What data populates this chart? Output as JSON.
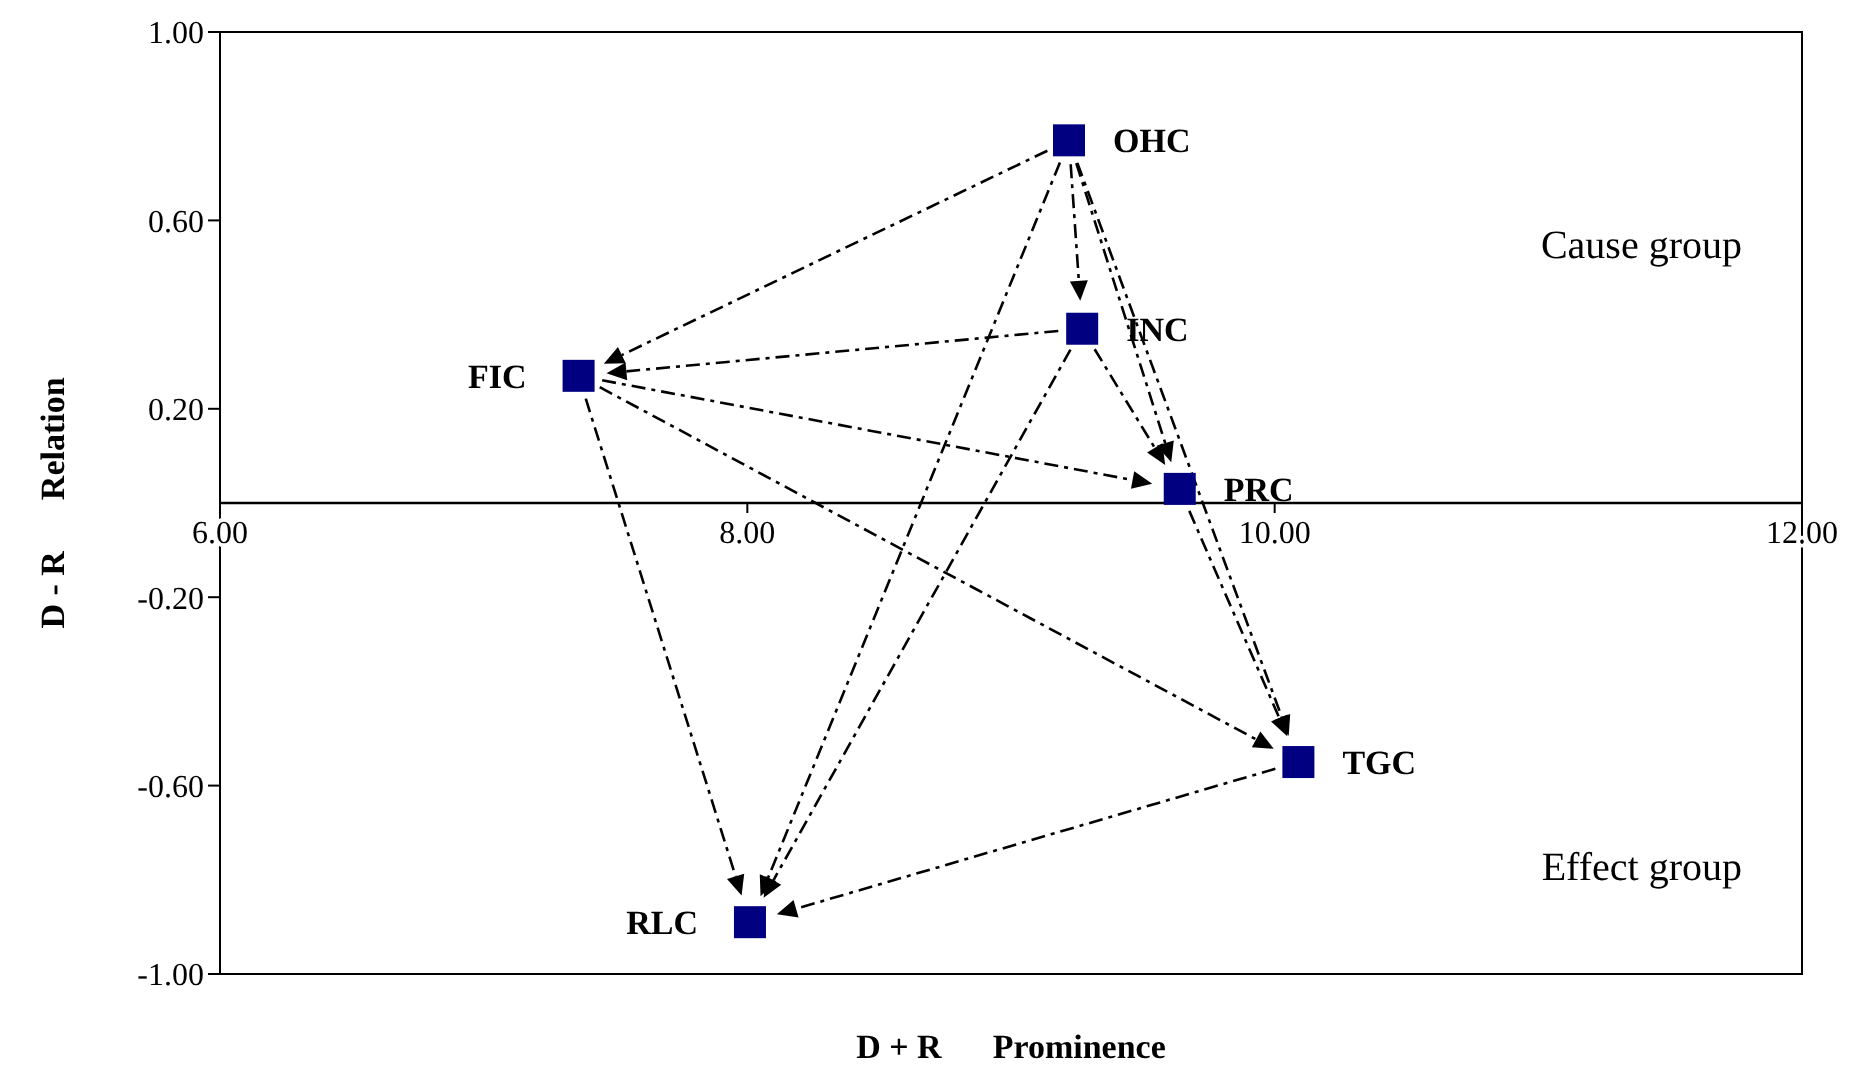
{
  "chart_data": {
    "type": "scatter",
    "xlabel": "D + R      Prominence",
    "ylabel": "D - R      Relation",
    "x": [
      9.22,
      9.27,
      7.36,
      9.64,
      10.09,
      8.01
    ],
    "series": [
      {
        "color": "#000080",
        "values": [
          0.77,
          0.37,
          0.27,
          0.03,
          -0.55,
          -0.89
        ]
      }
    ],
    "xlim": [
      6,
      12
    ],
    "ylim": [
      -1,
      1
    ],
    "xticks": [
      {
        "value": 6,
        "label": "6.00"
      },
      {
        "value": 8,
        "label": "8.00"
      },
      {
        "value": 10,
        "label": "10.00"
      },
      {
        "value": 12,
        "label": "12.00"
      }
    ],
    "yticks": [
      {
        "value": -1,
        "label": "-1.00"
      },
      {
        "value": -0.6,
        "label": "-0.60"
      },
      {
        "value": -0.2,
        "label": "-0.20"
      },
      {
        "value": 0.2,
        "label": "0.20"
      },
      {
        "value": 0.6,
        "label": "0.60"
      },
      {
        "value": 1,
        "label": "1.00"
      }
    ],
    "annotations": [
      {
        "text": "OHC",
        "x": 9.22,
        "y": 0.77
      },
      {
        "text": "INC",
        "x": 9.27,
        "y": 0.37
      },
      {
        "text": "FIC",
        "x": 7.36,
        "y": 0.27
      },
      {
        "text": "PRC",
        "x": 9.64,
        "y": 0.03
      },
      {
        "text": "TGC",
        "x": 10.09,
        "y": -0.55
      },
      {
        "text": "RLC",
        "x": 8.01,
        "y": -0.89
      },
      "Cause group",
      "Effect group"
    ],
    "marker": "square"
  }
}
